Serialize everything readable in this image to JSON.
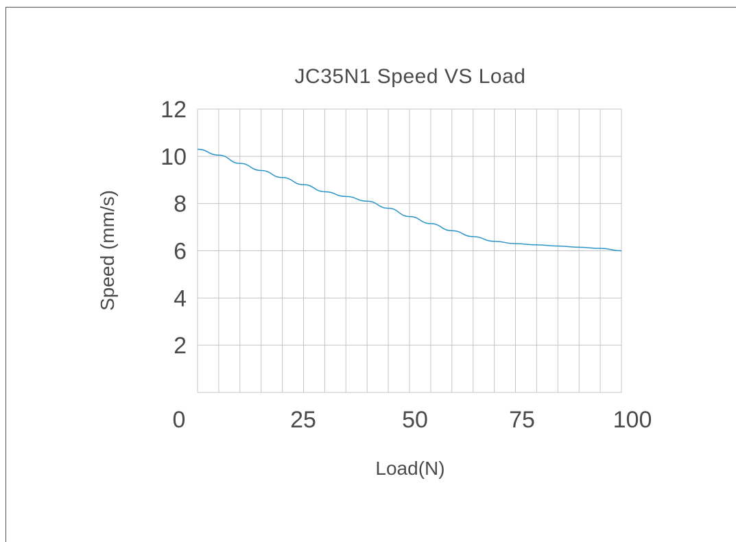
{
  "chart_data": {
    "type": "line",
    "title": "JC35N1 Speed VS Load",
    "xlabel": "Load(N)",
    "ylabel": "Speed (mm/s)",
    "x_ticks": [
      "0",
      "25",
      "50",
      "75",
      "100"
    ],
    "y_ticks": [
      "2",
      "4",
      "6",
      "8",
      "10",
      "12"
    ],
    "xlim": [
      0,
      100
    ],
    "ylim": [
      0,
      12
    ],
    "grid": true,
    "series": [
      {
        "color": "#2a93c9",
        "points": [
          [
            0,
            10.3
          ],
          [
            5,
            10.05
          ],
          [
            10,
            9.7
          ],
          [
            15,
            9.4
          ],
          [
            20,
            9.1
          ],
          [
            25,
            8.8
          ],
          [
            30,
            8.5
          ],
          [
            35,
            8.3
          ],
          [
            40,
            8.1
          ],
          [
            45,
            7.8
          ],
          [
            50,
            7.45
          ],
          [
            55,
            7.15
          ],
          [
            60,
            6.85
          ],
          [
            65,
            6.6
          ],
          [
            70,
            6.4
          ],
          [
            75,
            6.3
          ],
          [
            80,
            6.25
          ],
          [
            85,
            6.2
          ],
          [
            90,
            6.15
          ],
          [
            95,
            6.1
          ],
          [
            100,
            6.0
          ]
        ]
      }
    ]
  }
}
